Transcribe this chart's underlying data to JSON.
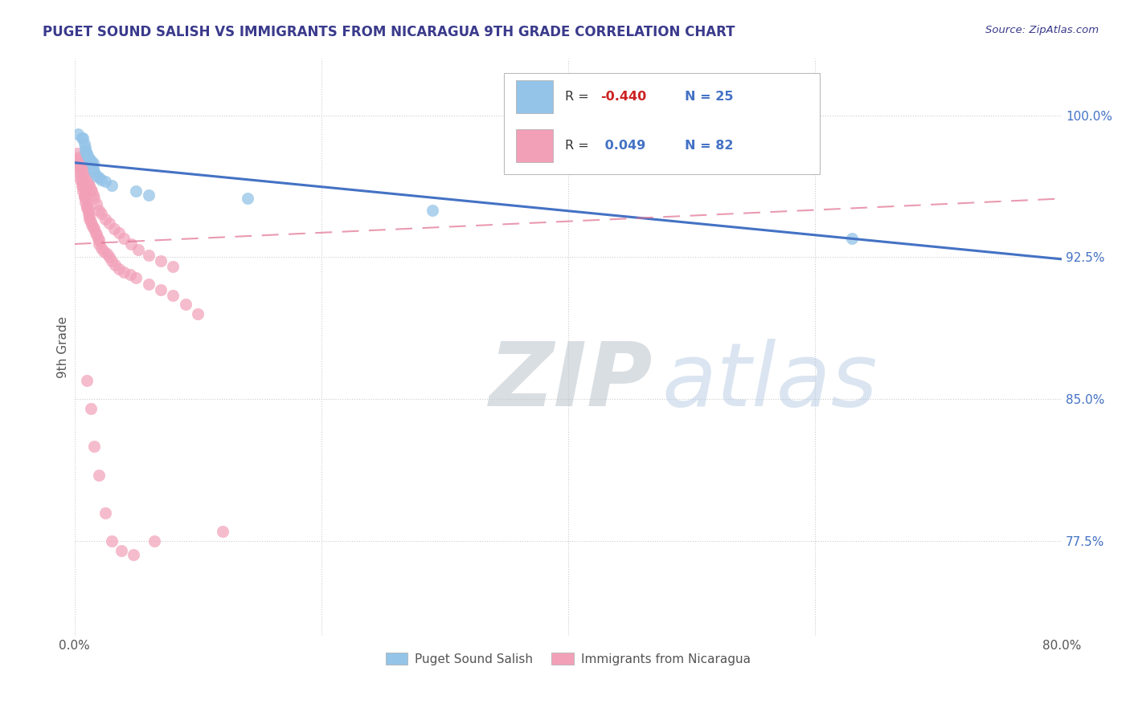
{
  "title": "PUGET SOUND SALISH VS IMMIGRANTS FROM NICARAGUA 9TH GRADE CORRELATION CHART",
  "source": "Source: ZipAtlas.com",
  "ylabel": "9th Grade",
  "ytick_labels": [
    "77.5%",
    "85.0%",
    "92.5%",
    "100.0%"
  ],
  "ytick_values": [
    0.775,
    0.85,
    0.925,
    1.0
  ],
  "xlim": [
    0.0,
    0.8
  ],
  "ylim": [
    0.725,
    1.03
  ],
  "legend_label1": "Puget Sound Salish",
  "legend_label2": "Immigrants from Nicaragua",
  "R1": -0.44,
  "N1": 25,
  "R2": 0.049,
  "N2": 82,
  "color1": "#94c4e8",
  "color2": "#f2a0b8",
  "trendline1_color": "#4472c4",
  "trendline2_color": "#e07090",
  "title_color": "#3a3a8c",
  "source_color": "#3a3a8c",
  "trendline1_x0": 0.0,
  "trendline1_y0": 0.975,
  "trendline1_x1": 0.8,
  "trendline1_y1": 0.924,
  "trendline2_x0": 0.0,
  "trendline2_y0": 0.932,
  "trendline2_x1": 0.8,
  "trendline2_y1": 0.956,
  "blue_scatter_x": [
    0.003,
    0.006,
    0.007,
    0.008,
    0.009,
    0.009,
    0.01,
    0.01,
    0.011,
    0.012,
    0.013,
    0.014,
    0.015,
    0.015,
    0.016,
    0.018,
    0.02,
    0.022,
    0.025,
    0.03,
    0.05,
    0.06,
    0.14,
    0.29,
    0.63
  ],
  "blue_scatter_y": [
    0.99,
    0.988,
    0.988,
    0.985,
    0.983,
    0.981,
    0.98,
    0.979,
    0.978,
    0.977,
    0.976,
    0.975,
    0.975,
    0.972,
    0.97,
    0.968,
    0.967,
    0.966,
    0.965,
    0.963,
    0.96,
    0.958,
    0.956,
    0.95,
    0.935
  ],
  "pink_scatter_x": [
    0.002,
    0.003,
    0.004,
    0.004,
    0.005,
    0.005,
    0.006,
    0.006,
    0.007,
    0.007,
    0.008,
    0.008,
    0.009,
    0.009,
    0.01,
    0.01,
    0.011,
    0.011,
    0.012,
    0.012,
    0.013,
    0.014,
    0.015,
    0.016,
    0.017,
    0.018,
    0.019,
    0.02,
    0.02,
    0.022,
    0.024,
    0.026,
    0.028,
    0.03,
    0.033,
    0.036,
    0.04,
    0.045,
    0.05,
    0.06,
    0.07,
    0.08,
    0.09,
    0.1,
    0.002,
    0.003,
    0.004,
    0.005,
    0.006,
    0.007,
    0.008,
    0.009,
    0.01,
    0.011,
    0.012,
    0.013,
    0.014,
    0.015,
    0.016,
    0.018,
    0.02,
    0.022,
    0.025,
    0.028,
    0.032,
    0.036,
    0.04,
    0.046,
    0.052,
    0.06,
    0.07,
    0.08,
    0.01,
    0.013,
    0.016,
    0.02,
    0.025,
    0.03,
    0.038,
    0.048,
    0.065,
    0.12
  ],
  "pink_scatter_y": [
    0.975,
    0.973,
    0.972,
    0.97,
    0.968,
    0.966,
    0.965,
    0.963,
    0.962,
    0.96,
    0.958,
    0.957,
    0.956,
    0.954,
    0.952,
    0.951,
    0.95,
    0.948,
    0.947,
    0.945,
    0.944,
    0.942,
    0.941,
    0.94,
    0.938,
    0.937,
    0.935,
    0.934,
    0.932,
    0.93,
    0.928,
    0.927,
    0.925,
    0.923,
    0.921,
    0.919,
    0.917,
    0.916,
    0.914,
    0.911,
    0.908,
    0.905,
    0.9,
    0.895,
    0.98,
    0.978,
    0.977,
    0.975,
    0.973,
    0.972,
    0.97,
    0.968,
    0.966,
    0.964,
    0.963,
    0.961,
    0.96,
    0.958,
    0.956,
    0.953,
    0.95,
    0.948,
    0.945,
    0.943,
    0.94,
    0.938,
    0.935,
    0.932,
    0.929,
    0.926,
    0.923,
    0.92,
    0.86,
    0.845,
    0.825,
    0.81,
    0.79,
    0.775,
    0.77,
    0.768,
    0.775,
    0.78
  ]
}
